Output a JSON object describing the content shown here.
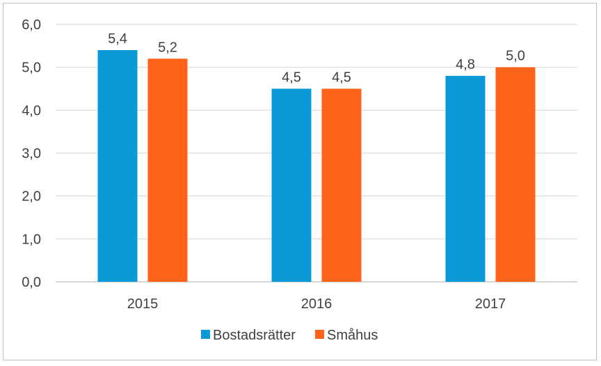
{
  "chart_data": {
    "type": "bar",
    "categories": [
      "2015",
      "2016",
      "2017"
    ],
    "series": [
      {
        "name": "Bostadsrätter",
        "values": [
          5.4,
          4.5,
          4.8
        ],
        "labels": [
          "5,4",
          "4,5",
          "4,8"
        ],
        "color": "#0a9ad8"
      },
      {
        "name": "Småhus",
        "values": [
          5.2,
          4.5,
          5.0
        ],
        "labels": [
          "5,2",
          "4,5",
          "5,0"
        ],
        "color": "#ff6319"
      }
    ],
    "y_ticks": [
      0,
      1,
      2,
      3,
      4,
      5,
      6
    ],
    "y_tick_labels": [
      "0,0",
      "1,0",
      "2,0",
      "3,0",
      "4,0",
      "5,0",
      "6,0"
    ],
    "ylim": [
      0,
      6
    ],
    "grid": true,
    "gridline_color": "#d9d9d9",
    "legend_position": "bottom",
    "title": "",
    "xlabel": "",
    "ylabel": ""
  }
}
